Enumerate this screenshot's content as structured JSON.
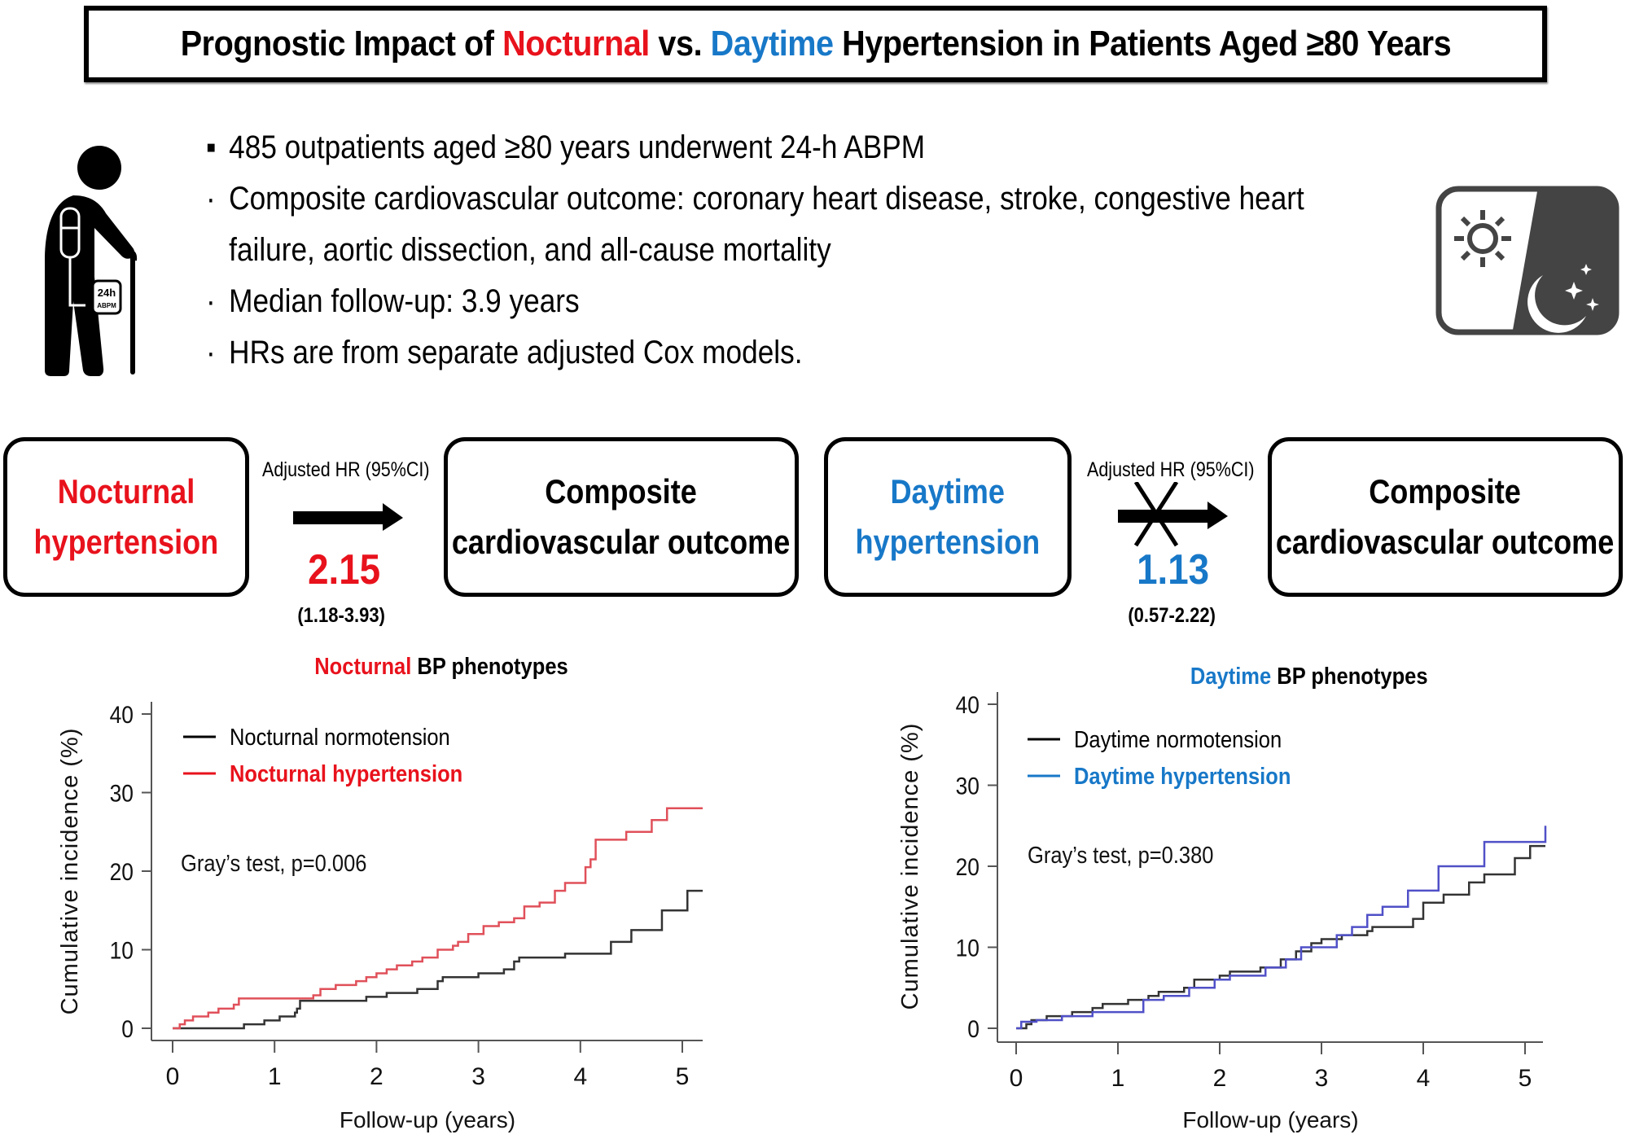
{
  "header": {
    "title_parts": [
      {
        "text": "Prognostic Impact of ",
        "color": "#000000"
      },
      {
        "text": "Nocturnal",
        "color": "#e8121c"
      },
      {
        "text": " vs. ",
        "color": "#000000"
      },
      {
        "text": "Daytime",
        "color": "#1878c8"
      },
      {
        "text": " Hypertension in Patients Aged ≥80 Years",
        "color": "#000000"
      }
    ]
  },
  "icons": {
    "patient": {
      "name": "elderly-patient-abpm-icon",
      "badge_line1": "24h",
      "badge_line2": "ABPM"
    },
    "day_night": {
      "name": "day-night-icon"
    }
  },
  "bullets": [
    {
      "marker": "▪",
      "text": "485 outpatients aged ≥80 years underwent 24-h ABPM"
    },
    {
      "marker": "·",
      "text": "Composite cardiovascular outcome: coronary heart disease, stroke, congestive heart"
    },
    {
      "marker": "",
      "text": "failure, aortic dissection, and all-cause mortality"
    },
    {
      "marker": "·",
      "text": "Median follow-up: 3.9 years"
    },
    {
      "marker": "·",
      "text": "HRs are from separate adjusted Cox models."
    }
  ],
  "flows": [
    {
      "exposure_line1": "Nocturnal",
      "exposure_line2": "hypertension",
      "exposure_color": "#e8121c",
      "hr_label": "Adjusted HR (95%CI)",
      "hr_value": "2.15",
      "hr_ci": "(1.18-3.93)",
      "hr_color": "#e8121c",
      "arrow": "significant",
      "outcome_line1": "Composite",
      "outcome_line2": "cardiovascular outcome"
    },
    {
      "exposure_line1": "Daytime",
      "exposure_line2": "hypertension",
      "exposure_color": "#1878c8",
      "hr_label": "Adjusted HR (95%CI)",
      "hr_value": "1.13",
      "hr_ci": "(0.57-2.22)",
      "hr_color": "#1878c8",
      "arrow": "not-significant (crossed)",
      "outcome_line1": "Composite",
      "outcome_line2": "cardiovascular outcome"
    }
  ],
  "chart_data": [
    {
      "type": "line",
      "subtype": "step",
      "title_colored": "Nocturnal",
      "title_rest": " BP phenotypes",
      "title_color": "#e8121c",
      "xlabel": "Follow-up (years)",
      "ylabel": "Cumulative incidence (%)",
      "xlim": [
        0,
        5.2
      ],
      "ylim": [
        0,
        40
      ],
      "xticks": [
        0,
        1,
        2,
        3,
        4,
        5
      ],
      "yticks": [
        0,
        10,
        20,
        30,
        40
      ],
      "xtick_labels": [
        "0",
        "1",
        "2",
        "3",
        "4",
        "5"
      ],
      "ytick_labels": [
        "0",
        "10",
        "20",
        "30",
        "40"
      ],
      "grid": false,
      "legend": "top-left",
      "annotation": "Gray’s test, p=0.006",
      "series": [
        {
          "name": "Nocturnal normotension",
          "color": "#333333",
          "legend_color": "#000000",
          "x": [
            0,
            0.7,
            0.9,
            1.05,
            1.2,
            1.22,
            1.25,
            1.9,
            2.1,
            2.4,
            2.6,
            2.65,
            3.0,
            3.25,
            3.35,
            3.4,
            3.85,
            4.3,
            4.5,
            4.8,
            5.05,
            5.2
          ],
          "y": [
            0,
            0.5,
            1.0,
            1.5,
            2.0,
            2.5,
            3.5,
            4.0,
            4.5,
            5.0,
            6.0,
            6.5,
            7.0,
            7.5,
            8.5,
            9.0,
            9.5,
            11.0,
            12.5,
            15.0,
            17.5,
            17.5
          ]
        },
        {
          "name": "Nocturnal hypertension",
          "color": "#e0505a",
          "legend_color": "#e8121c",
          "x": [
            0,
            0.07,
            0.12,
            0.2,
            0.35,
            0.45,
            0.6,
            0.65,
            1.38,
            1.45,
            1.6,
            1.8,
            1.9,
            2.0,
            2.1,
            2.2,
            2.35,
            2.45,
            2.6,
            2.75,
            2.8,
            2.9,
            3.05,
            3.2,
            3.35,
            3.45,
            3.6,
            3.75,
            3.85,
            4.05,
            4.1,
            4.15,
            4.45,
            4.7,
            4.85,
            5.2
          ],
          "y": [
            0,
            0.5,
            1.0,
            1.5,
            2.0,
            2.5,
            3.0,
            3.8,
            4.2,
            5.0,
            5.5,
            6.0,
            6.5,
            7.0,
            7.5,
            8.0,
            8.5,
            9.0,
            10.0,
            10.5,
            11.0,
            12.0,
            13.0,
            13.5,
            14.0,
            15.5,
            16.0,
            17.5,
            18.5,
            20.5,
            21.5,
            24.0,
            25.0,
            26.5,
            28.0,
            28.0
          ]
        }
      ]
    },
    {
      "type": "line",
      "subtype": "step",
      "title_colored": "Daytime",
      "title_rest": " BP phenotypes",
      "title_color": "#1878c8",
      "xlabel": "Follow-up (years)",
      "ylabel": "Cumulative incidence (%)",
      "xlim": [
        0,
        5.2
      ],
      "ylim": [
        0,
        40
      ],
      "xticks": [
        0,
        1,
        2,
        3,
        4,
        5
      ],
      "yticks": [
        0,
        10,
        20,
        30,
        40
      ],
      "xtick_labels": [
        "0",
        "1",
        "2",
        "3",
        "4",
        "5"
      ],
      "ytick_labels": [
        "0",
        "10",
        "20",
        "30",
        "40"
      ],
      "grid": false,
      "legend": "top-left",
      "annotation": "Gray’s test, p=0.380",
      "series": [
        {
          "name": "Daytime normotension",
          "color": "#333333",
          "legend_color": "#000000",
          "x": [
            0,
            0.1,
            0.15,
            0.3,
            0.55,
            0.75,
            0.85,
            1.1,
            1.3,
            1.4,
            1.65,
            1.75,
            2.0,
            2.1,
            2.4,
            2.6,
            2.75,
            2.9,
            3.0,
            3.2,
            3.45,
            3.5,
            3.9,
            4.0,
            4.2,
            4.45,
            4.6,
            4.9,
            5.05,
            5.2
          ],
          "y": [
            0,
            0.5,
            1.0,
            1.5,
            2.0,
            2.5,
            3.0,
            3.5,
            4.0,
            4.5,
            5.0,
            6.0,
            6.5,
            7.0,
            7.5,
            8.5,
            9.5,
            10.5,
            11.0,
            11.5,
            12.0,
            12.5,
            13.5,
            15.5,
            16.5,
            18.0,
            19.0,
            21.0,
            22.5,
            22.5
          ]
        },
        {
          "name": "Daytime hypertension",
          "color": "#5050c8",
          "legend_color": "#1878c8",
          "x": [
            0,
            0.05,
            0.2,
            0.45,
            0.75,
            1.25,
            1.45,
            1.7,
            1.95,
            2.1,
            2.45,
            2.65,
            2.8,
            3.15,
            3.3,
            3.45,
            3.6,
            3.85,
            4.15,
            4.6,
            5.2
          ],
          "y": [
            0,
            0.8,
            1.0,
            1.5,
            2.0,
            3.5,
            4.0,
            5.0,
            6.0,
            6.5,
            7.5,
            8.5,
            10.0,
            11.5,
            12.5,
            14.0,
            15.0,
            17.0,
            20.0,
            23.0,
            25.0
          ]
        }
      ]
    }
  ]
}
